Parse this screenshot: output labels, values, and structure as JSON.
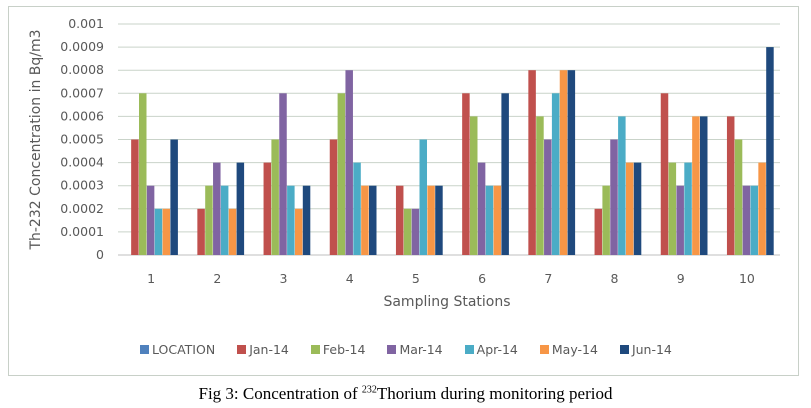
{
  "chart_data": {
    "type": "bar",
    "title": "",
    "xlabel": "Sampling Stations",
    "ylabel": "Th-232 Concentration in Bq/m3",
    "ylim": [
      0,
      0.001
    ],
    "yticks": [
      "0",
      "0.0001",
      "0.0002",
      "0.0003",
      "0.0004",
      "0.0005",
      "0.0006",
      "0.0007",
      "0.0008",
      "0.0009",
      "0.001"
    ],
    "grid": true,
    "legend_position": "bottom",
    "categories": [
      "1",
      "2",
      "3",
      "4",
      "5",
      "6",
      "7",
      "8",
      "9",
      "10"
    ],
    "series": [
      {
        "name": "LOCATION",
        "color": "#4f81bd",
        "values": [
          0,
          0,
          0,
          0,
          0,
          0,
          0,
          0,
          0,
          0
        ]
      },
      {
        "name": "Jan-14",
        "color": "#c0504d",
        "values": [
          0.0005,
          0.0002,
          0.0004,
          0.0005,
          0.0003,
          0.0007,
          0.0008,
          0.0002,
          0.0007,
          0.0006
        ]
      },
      {
        "name": "Feb-14",
        "color": "#9bbb59",
        "values": [
          0.0007,
          0.0003,
          0.0005,
          0.0007,
          0.0002,
          0.0006,
          0.0006,
          0.0003,
          0.0004,
          0.0005
        ]
      },
      {
        "name": "Mar-14",
        "color": "#8064a2",
        "values": [
          0.0003,
          0.0004,
          0.0007,
          0.0008,
          0.0002,
          0.0004,
          0.0005,
          0.0005,
          0.0003,
          0.0003
        ]
      },
      {
        "name": "Apr-14",
        "color": "#4bacc6",
        "values": [
          0.0002,
          0.0003,
          0.0003,
          0.0004,
          0.0005,
          0.0003,
          0.0007,
          0.0006,
          0.0004,
          0.0003
        ]
      },
      {
        "name": "May-14",
        "color": "#f79646",
        "values": [
          0.0002,
          0.0002,
          0.0002,
          0.0003,
          0.0003,
          0.0003,
          0.0008,
          0.0004,
          0.0006,
          0.0004
        ]
      },
      {
        "name": "Jun-14",
        "color": "#1f497d",
        "values": [
          0.0005,
          0.0004,
          0.0003,
          0.0003,
          0.0003,
          0.0007,
          0.0008,
          0.0004,
          0.0006,
          0.0009
        ]
      }
    ]
  },
  "caption": {
    "prefix": "Fig 3: Concentration of ",
    "superscript": "232",
    "suffix": "Thorium during monitoring period"
  }
}
